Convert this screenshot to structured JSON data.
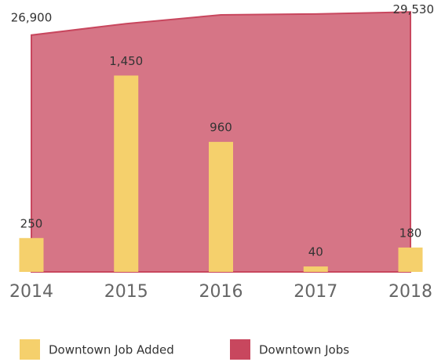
{
  "chart_data": {
    "type": "combo",
    "categories": [
      "2014",
      "2015",
      "2016",
      "2017",
      "2018"
    ],
    "series": [
      {
        "name": "Downtown Jobs",
        "type": "area",
        "color": "#c8475e",
        "values": [
          26900,
          28200,
          29200,
          29300,
          29530
        ],
        "value_labels": [
          "26,900",
          null,
          null,
          null,
          "29,530"
        ]
      },
      {
        "name": "Downtown Job Added",
        "type": "bar",
        "axis": "y2",
        "color": "#f5d06c",
        "values": [
          250,
          1450,
          960,
          40,
          180
        ],
        "value_labels": [
          "250",
          "1,450",
          "960",
          "40",
          "180"
        ]
      }
    ],
    "ylim": [
      0,
      30000
    ],
    "y2lim": [
      0,
      1950
    ],
    "legend": "bottom-left"
  }
}
